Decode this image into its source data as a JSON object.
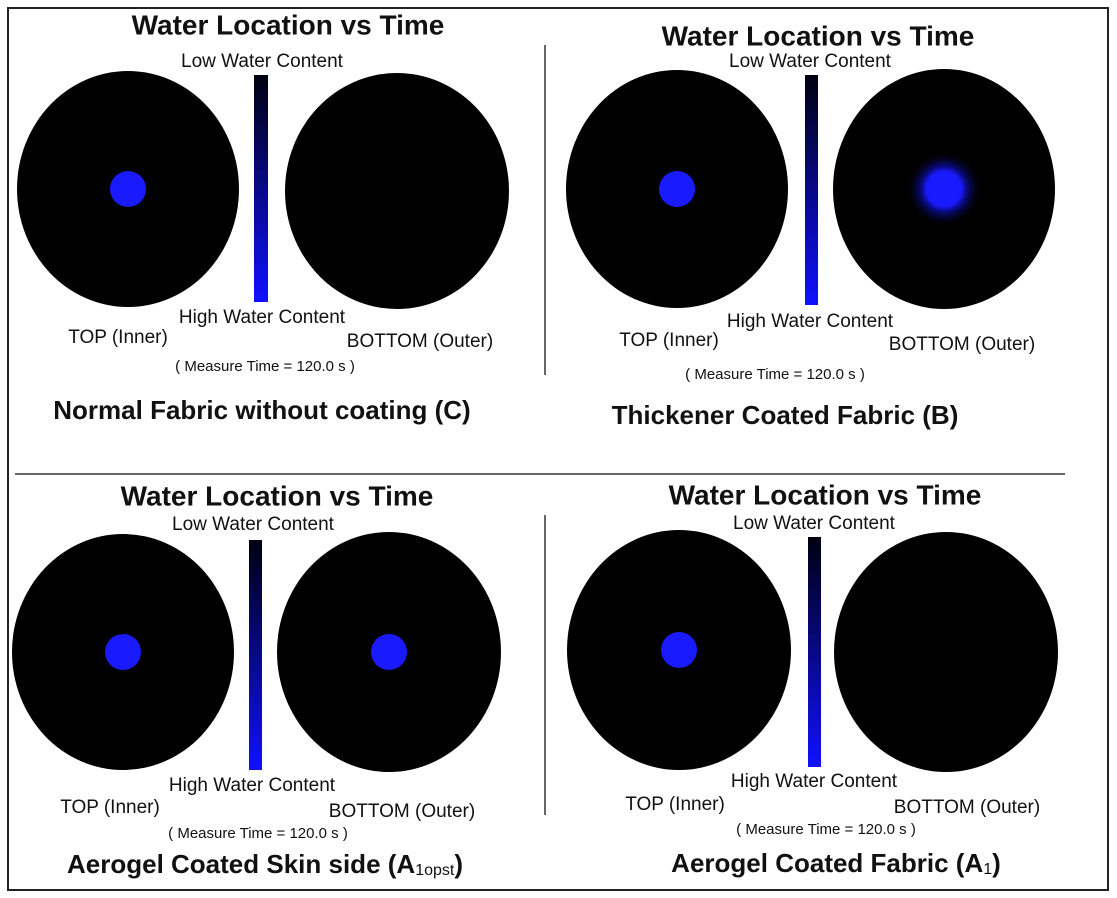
{
  "panels": [
    {
      "title": "Water Location vs Time",
      "low_label": "Low Water Content",
      "high_label": "High Water Content",
      "top_label": "TOP (Inner)",
      "bottom_label": "BOTTOM (Outer)",
      "measure": "( Measure Time = 120.0 s     )",
      "caption": "Normal Fabric without coating (C)"
    },
    {
      "title": "Water Location vs Time",
      "low_label": "Low Water Content",
      "high_label": "High Water Content",
      "top_label": "TOP (Inner)",
      "bottom_label": "BOTTOM (Outer)",
      "measure": "( Measure Time = 120.0 s     )",
      "caption": "Thickener Coated Fabric (B)"
    },
    {
      "title": "Water Location vs Time",
      "low_label": "Low Water Content",
      "high_label": "High Water Content",
      "top_label": "TOP (Inner)",
      "bottom_label": "BOTTOM (Outer)",
      "measure": "( Measure Time = 120.0 s     )",
      "caption": "Aerogel Coated Skin side (A",
      "caption_sub": "1opst",
      "caption_end": ")"
    },
    {
      "title": "Water Location vs Time",
      "low_label": "Low Water Content",
      "high_label": "High Water Content",
      "top_label": "TOP (Inner)",
      "bottom_label": "BOTTOM (Outer)",
      "measure": "( Measure Time = 120.0 s     )",
      "caption": "Aerogel Coated Fabric (A",
      "caption_sub": "1",
      "caption_end": ")"
    }
  ]
}
